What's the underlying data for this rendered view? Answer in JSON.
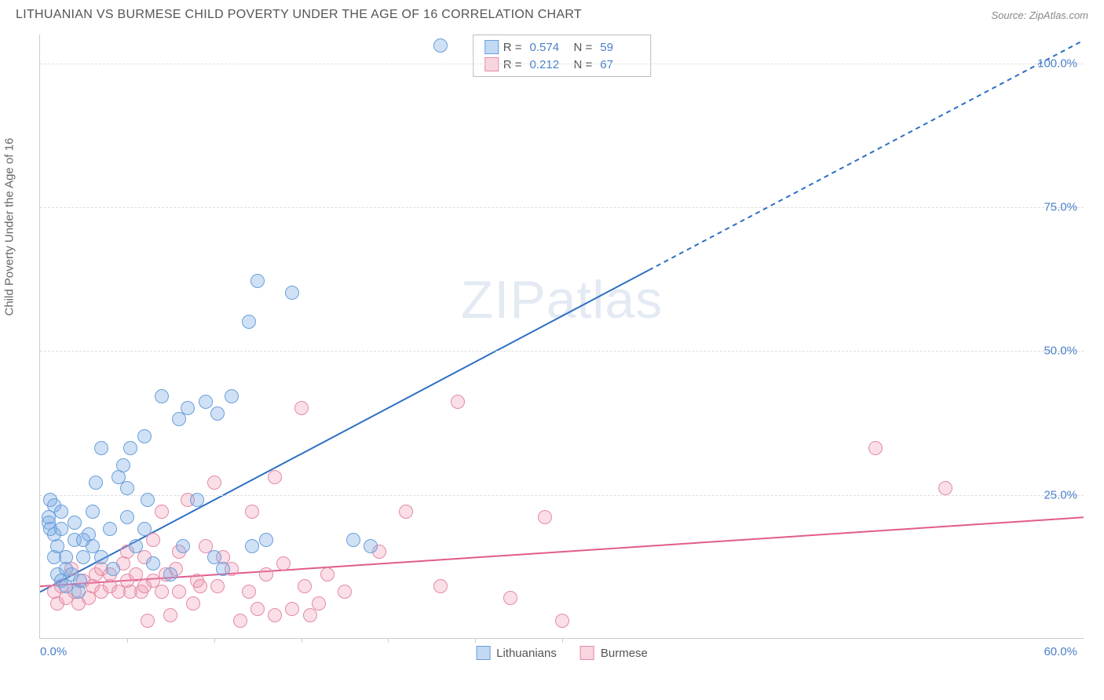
{
  "title": "LITHUANIAN VS BURMESE CHILD POVERTY UNDER THE AGE OF 16 CORRELATION CHART",
  "source": "Source: ZipAtlas.com",
  "ylabel": "Child Poverty Under the Age of 16",
  "watermark_a": "ZIP",
  "watermark_b": "atlas",
  "chart": {
    "type": "scatter",
    "xlim": [
      0,
      60
    ],
    "ylim": [
      0,
      105
    ],
    "yticks": [
      25,
      50,
      75,
      100
    ],
    "ytick_labels": [
      "25.0%",
      "50.0%",
      "75.0%",
      "100.0%"
    ],
    "xticks_minor": [
      5,
      10,
      15,
      20,
      25,
      30
    ],
    "xtick_left": "0.0%",
    "xtick_right": "60.0%",
    "grid_color": "#dddddd",
    "background_color": "#ffffff",
    "axis_color": "#cccccc",
    "tick_label_color": "#4a7fc9",
    "point_radius": 9,
    "series": {
      "lithuanians": {
        "label": "Lithuanians",
        "color_fill": "rgba(120,170,230,0.35)",
        "color_stroke": "#6a9fd9",
        "r": 0.574,
        "n": 59,
        "trend": {
          "x1": 0,
          "y1": 8,
          "x2": 35,
          "y2": 64,
          "dash_x2": 60,
          "dash_y2": 104,
          "stroke": "#2d6fc4",
          "width": 2
        },
        "points": [
          [
            0.5,
            21
          ],
          [
            0.5,
            20
          ],
          [
            0.6,
            19
          ],
          [
            0.6,
            24
          ],
          [
            0.8,
            23
          ],
          [
            0.8,
            18
          ],
          [
            0.8,
            14
          ],
          [
            1.0,
            16
          ],
          [
            1.0,
            11
          ],
          [
            1.2,
            10
          ],
          [
            1.2,
            19
          ],
          [
            1.2,
            22
          ],
          [
            1.5,
            12
          ],
          [
            1.5,
            9
          ],
          [
            1.5,
            14
          ],
          [
            1.8,
            11
          ],
          [
            2.0,
            17
          ],
          [
            2.0,
            20
          ],
          [
            2.2,
            8
          ],
          [
            2.3,
            10
          ],
          [
            2.5,
            14
          ],
          [
            2.5,
            17
          ],
          [
            2.8,
            18
          ],
          [
            3.0,
            22
          ],
          [
            3.0,
            16
          ],
          [
            3.2,
            27
          ],
          [
            3.5,
            33
          ],
          [
            3.5,
            14
          ],
          [
            4.0,
            19
          ],
          [
            4.2,
            12
          ],
          [
            4.5,
            28
          ],
          [
            4.8,
            30
          ],
          [
            5.0,
            21
          ],
          [
            5.0,
            26
          ],
          [
            5.2,
            33
          ],
          [
            5.5,
            16
          ],
          [
            6.0,
            19
          ],
          [
            6.0,
            35
          ],
          [
            6.2,
            24
          ],
          [
            6.5,
            13
          ],
          [
            7.0,
            42
          ],
          [
            7.5,
            11
          ],
          [
            8.0,
            38
          ],
          [
            8.2,
            16
          ],
          [
            8.5,
            40
          ],
          [
            9.0,
            24
          ],
          [
            9.5,
            41
          ],
          [
            10.0,
            14
          ],
          [
            10.2,
            39
          ],
          [
            10.5,
            12
          ],
          [
            11.0,
            42
          ],
          [
            12.0,
            55
          ],
          [
            12.2,
            16
          ],
          [
            12.5,
            62
          ],
          [
            13.0,
            17
          ],
          [
            14.5,
            60
          ],
          [
            18.0,
            17
          ],
          [
            19.0,
            16
          ],
          [
            23.0,
            103
          ]
        ]
      },
      "burmese": {
        "label": "Burmese",
        "color_fill": "rgba(240,150,175,0.3)",
        "color_stroke": "#e58aa5",
        "r": 0.212,
        "n": 67,
        "trend": {
          "x1": 0,
          "y1": 9,
          "x2": 60,
          "y2": 21,
          "stroke": "#e15b8c",
          "width": 2
        },
        "points": [
          [
            0.8,
            8
          ],
          [
            1.0,
            6
          ],
          [
            1.2,
            9
          ],
          [
            1.5,
            7
          ],
          [
            1.8,
            12
          ],
          [
            2.0,
            8
          ],
          [
            2.2,
            6
          ],
          [
            2.5,
            10
          ],
          [
            2.8,
            7
          ],
          [
            3.0,
            9
          ],
          [
            3.2,
            11
          ],
          [
            3.5,
            8
          ],
          [
            3.5,
            12
          ],
          [
            4.0,
            9
          ],
          [
            4.0,
            11
          ],
          [
            4.5,
            8
          ],
          [
            4.8,
            13
          ],
          [
            5.0,
            10
          ],
          [
            5.0,
            15
          ],
          [
            5.2,
            8
          ],
          [
            5.5,
            11
          ],
          [
            5.8,
            8
          ],
          [
            6.0,
            9
          ],
          [
            6.0,
            14
          ],
          [
            6.2,
            3
          ],
          [
            6.5,
            10
          ],
          [
            6.5,
            17
          ],
          [
            7.0,
            8
          ],
          [
            7.0,
            22
          ],
          [
            7.2,
            11
          ],
          [
            7.5,
            4
          ],
          [
            7.8,
            12
          ],
          [
            8.0,
            15
          ],
          [
            8.0,
            8
          ],
          [
            8.5,
            24
          ],
          [
            8.8,
            6
          ],
          [
            9.0,
            10
          ],
          [
            9.2,
            9
          ],
          [
            9.5,
            16
          ],
          [
            10.0,
            27
          ],
          [
            10.2,
            9
          ],
          [
            10.5,
            14
          ],
          [
            11.0,
            12
          ],
          [
            11.5,
            3
          ],
          [
            12.0,
            8
          ],
          [
            12.2,
            22
          ],
          [
            12.5,
            5
          ],
          [
            13.0,
            11
          ],
          [
            13.5,
            4
          ],
          [
            13.5,
            28
          ],
          [
            14.0,
            13
          ],
          [
            14.5,
            5
          ],
          [
            15.0,
            40
          ],
          [
            15.2,
            9
          ],
          [
            15.5,
            4
          ],
          [
            16.0,
            6
          ],
          [
            16.5,
            11
          ],
          [
            17.5,
            8
          ],
          [
            19.5,
            15
          ],
          [
            21.0,
            22
          ],
          [
            23.0,
            9
          ],
          [
            24.0,
            41
          ],
          [
            27.0,
            7
          ],
          [
            29.0,
            21
          ],
          [
            30.0,
            3
          ],
          [
            48.0,
            33
          ],
          [
            52.0,
            26
          ]
        ]
      }
    }
  },
  "bottom_legend": [
    "Lithuanians",
    "Burmese"
  ]
}
